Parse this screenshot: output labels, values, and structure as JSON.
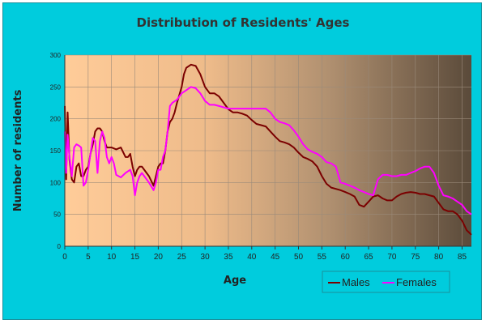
{
  "chart_data": {
    "type": "line",
    "title": "Distribution of Residents' Ages",
    "xlabel": "Age",
    "ylabel": "Number of residents",
    "xlim": [
      0,
      87
    ],
    "ylim": [
      0,
      300
    ],
    "x_ticks": [
      0,
      5,
      10,
      15,
      20,
      25,
      30,
      35,
      40,
      45,
      50,
      55,
      60,
      65,
      70,
      75,
      80,
      85
    ],
    "y_ticks": [
      0,
      50,
      100,
      150,
      200,
      250,
      300
    ],
    "grid": true,
    "legend_position": "bottom-right",
    "series": [
      {
        "name": "Males",
        "color": "#7b0000",
        "points": [
          [
            0,
            220
          ],
          [
            0.3,
            105
          ],
          [
            0.6,
            210
          ],
          [
            1,
            135
          ],
          [
            1.5,
            105
          ],
          [
            2,
            100
          ],
          [
            2.5,
            125
          ],
          [
            3,
            130
          ],
          [
            3.5,
            110
          ],
          [
            4,
            110
          ],
          [
            4.5,
            120
          ],
          [
            5,
            125
          ],
          [
            5.5,
            145
          ],
          [
            6,
            160
          ],
          [
            6.5,
            180
          ],
          [
            7,
            185
          ],
          [
            7.5,
            185
          ],
          [
            8,
            180
          ],
          [
            8.5,
            165
          ],
          [
            9,
            155
          ],
          [
            10,
            155
          ],
          [
            11,
            152
          ],
          [
            12,
            155
          ],
          [
            13,
            140
          ],
          [
            13.5,
            140
          ],
          [
            14,
            145
          ],
          [
            14.5,
            125
          ],
          [
            15,
            110
          ],
          [
            15.5,
            120
          ],
          [
            16,
            125
          ],
          [
            16.5,
            125
          ],
          [
            17,
            120
          ],
          [
            18,
            110
          ],
          [
            19,
            95
          ],
          [
            19.5,
            110
          ],
          [
            20,
            125
          ],
          [
            20.5,
            130
          ],
          [
            21,
            130
          ],
          [
            21.5,
            150
          ],
          [
            22,
            180
          ],
          [
            22.5,
            195
          ],
          [
            23,
            200
          ],
          [
            23.5,
            210
          ],
          [
            24,
            225
          ],
          [
            25,
            250
          ],
          [
            25.5,
            270
          ],
          [
            26,
            280
          ],
          [
            27,
            285
          ],
          [
            28,
            283
          ],
          [
            29,
            270
          ],
          [
            30,
            250
          ],
          [
            31,
            240
          ],
          [
            32,
            240
          ],
          [
            33,
            235
          ],
          [
            34,
            225
          ],
          [
            35,
            215
          ],
          [
            36,
            210
          ],
          [
            37,
            210
          ],
          [
            38,
            208
          ],
          [
            39,
            205
          ],
          [
            40,
            198
          ],
          [
            41,
            192
          ],
          [
            42,
            190
          ],
          [
            43,
            188
          ],
          [
            44,
            180
          ],
          [
            45,
            172
          ],
          [
            46,
            165
          ],
          [
            47,
            163
          ],
          [
            48,
            160
          ],
          [
            49,
            155
          ],
          [
            50,
            147
          ],
          [
            51,
            140
          ],
          [
            52,
            137
          ],
          [
            53,
            133
          ],
          [
            54,
            125
          ],
          [
            55,
            110
          ],
          [
            56,
            98
          ],
          [
            57,
            92
          ],
          [
            58,
            90
          ],
          [
            59,
            88
          ],
          [
            60,
            85
          ],
          [
            61,
            82
          ],
          [
            62,
            78
          ],
          [
            63,
            65
          ],
          [
            64,
            62
          ],
          [
            65,
            70
          ],
          [
            66,
            78
          ],
          [
            67,
            80
          ],
          [
            68,
            75
          ],
          [
            69,
            72
          ],
          [
            70,
            72
          ],
          [
            71,
            78
          ],
          [
            72,
            82
          ],
          [
            73,
            84
          ],
          [
            74,
            85
          ],
          [
            75,
            84
          ],
          [
            76,
            82
          ],
          [
            77,
            82
          ],
          [
            78,
            80
          ],
          [
            79,
            78
          ],
          [
            80,
            68
          ],
          [
            81,
            58
          ],
          [
            82,
            55
          ],
          [
            83,
            55
          ],
          [
            84,
            50
          ],
          [
            85,
            40
          ],
          [
            86,
            25
          ],
          [
            87,
            18
          ]
        ]
      },
      {
        "name": "Females",
        "color": "#ff00ff",
        "points": [
          [
            0,
            180
          ],
          [
            0.3,
            115
          ],
          [
            0.6,
            175
          ],
          [
            1,
            140
          ],
          [
            1.5,
            110
          ],
          [
            2,
            155
          ],
          [
            2.5,
            160
          ],
          [
            3,
            158
          ],
          [
            3.5,
            155
          ],
          [
            4,
            95
          ],
          [
            4.5,
            100
          ],
          [
            5,
            120
          ],
          [
            5.5,
            145
          ],
          [
            6,
            170
          ],
          [
            6.5,
            165
          ],
          [
            7,
            115
          ],
          [
            7.5,
            165
          ],
          [
            8,
            180
          ],
          [
            8.5,
            170
          ],
          [
            9,
            140
          ],
          [
            9.5,
            130
          ],
          [
            10,
            140
          ],
          [
            10.5,
            130
          ],
          [
            11,
            112
          ],
          [
            12,
            108
          ],
          [
            13,
            115
          ],
          [
            14,
            120
          ],
          [
            14.5,
            110
          ],
          [
            15,
            80
          ],
          [
            15.5,
            100
          ],
          [
            16,
            110
          ],
          [
            16.5,
            115
          ],
          [
            17,
            110
          ],
          [
            18,
            100
          ],
          [
            19,
            88
          ],
          [
            19.5,
            100
          ],
          [
            20,
            120
          ],
          [
            20.5,
            120
          ],
          [
            21,
            140
          ],
          [
            21.5,
            150
          ],
          [
            22,
            180
          ],
          [
            22.5,
            220
          ],
          [
            23,
            225
          ],
          [
            24,
            230
          ],
          [
            25,
            240
          ],
          [
            26,
            245
          ],
          [
            27,
            250
          ],
          [
            28,
            248
          ],
          [
            29,
            240
          ],
          [
            30,
            228
          ],
          [
            31,
            222
          ],
          [
            32,
            222
          ],
          [
            33,
            220
          ],
          [
            34,
            218
          ],
          [
            35,
            216
          ],
          [
            36,
            216
          ],
          [
            37,
            216
          ],
          [
            38,
            216
          ],
          [
            39,
            216
          ],
          [
            40,
            216
          ],
          [
            41,
            216
          ],
          [
            42,
            216
          ],
          [
            43,
            216
          ],
          [
            44,
            210
          ],
          [
            45,
            200
          ],
          [
            46,
            195
          ],
          [
            47,
            193
          ],
          [
            48,
            190
          ],
          [
            49,
            182
          ],
          [
            50,
            172
          ],
          [
            51,
            160
          ],
          [
            52,
            152
          ],
          [
            53,
            148
          ],
          [
            54,
            145
          ],
          [
            55,
            140
          ],
          [
            56,
            132
          ],
          [
            57,
            130
          ],
          [
            58,
            125
          ],
          [
            59,
            100
          ],
          [
            60,
            98
          ],
          [
            61,
            95
          ],
          [
            62,
            92
          ],
          [
            63,
            88
          ],
          [
            64,
            85
          ],
          [
            65,
            82
          ],
          [
            66,
            80
          ],
          [
            67,
            105
          ],
          [
            68,
            112
          ],
          [
            69,
            112
          ],
          [
            70,
            110
          ],
          [
            71,
            110
          ],
          [
            72,
            112
          ],
          [
            73,
            112
          ],
          [
            74,
            115
          ],
          [
            75,
            118
          ],
          [
            76,
            122
          ],
          [
            77,
            125
          ],
          [
            78,
            125
          ],
          [
            79,
            115
          ],
          [
            80,
            95
          ],
          [
            81,
            80
          ],
          [
            82,
            78
          ],
          [
            83,
            75
          ],
          [
            84,
            70
          ],
          [
            85,
            65
          ],
          [
            86,
            55
          ],
          [
            87,
            50
          ]
        ]
      }
    ]
  }
}
